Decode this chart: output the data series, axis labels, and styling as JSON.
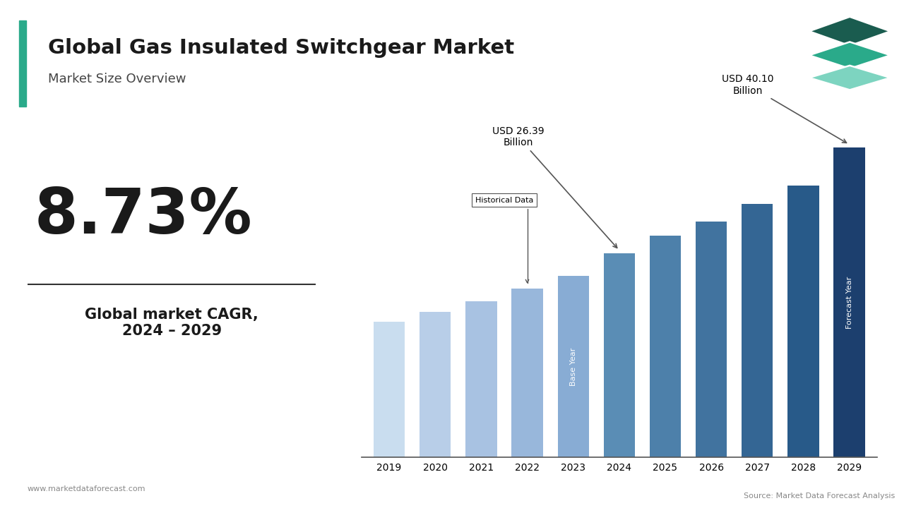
{
  "title": "Global Gas Insulated Switchgear Market",
  "subtitle": "Market Size Overview",
  "cagr": "8.73%",
  "cagr_label": "Global market CAGR,\n2024 – 2029",
  "years": [
    2019,
    2020,
    2021,
    2022,
    2023,
    2024,
    2025,
    2026,
    2027,
    2028,
    2029
  ],
  "values": [
    17.5,
    18.8,
    20.2,
    21.8,
    23.5,
    26.39,
    28.7,
    30.5,
    32.8,
    35.2,
    40.1
  ],
  "light_blues": [
    "#c9ddef",
    "#b8cee8",
    "#a8c2e2",
    "#98b7db",
    "#88acd4"
  ],
  "dark_blues": [
    "#5a8db5",
    "#4d80aa",
    "#41739f",
    "#346694",
    "#285a89",
    "#1c3f6e"
  ],
  "annotation_hist_label": "Historical Data",
  "annotation_2024_label": "USD 26.39\nBillion",
  "annotation_2029_label": "USD 40.10\nBillion",
  "base_year_label": "Base Year",
  "forecast_year_label": "Forecast Year",
  "teal_bar_color": "#2aaa8a",
  "teal_mid_color": "#2aaa8a",
  "teal_dark_color": "#1a5c4f",
  "teal_light_color": "#7dd4c0",
  "website": "www.marketdataforecast.com",
  "source": "Source: Market Data Forecast Analysis",
  "background_color": "#ffffff",
  "title_color": "#1a1a1a"
}
